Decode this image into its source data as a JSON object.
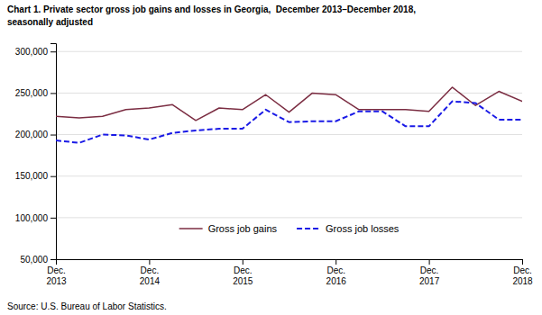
{
  "chart_data": {
    "type": "line",
    "title": "Chart 1. Private sector gross job gains and losses in Georgia,  December 2013–December 2018,\nseasonally adjusted",
    "annotations": [
      "Source: U.S. Bureau of Labor Statistics."
    ],
    "categories": [
      "Dec.\n2013",
      null,
      null,
      null,
      "Dec.\n2014",
      null,
      null,
      null,
      "Dec.\n2015",
      null,
      null,
      null,
      "Dec.\n2016",
      null,
      null,
      null,
      "Dec.\n2017",
      null,
      null,
      null,
      "Dec.\n2018"
    ],
    "series": [
      {
        "name": "Gross job gains",
        "color": "#7B2D42",
        "line_style": "solid",
        "values": [
          222000,
          220000,
          222000,
          230000,
          232000,
          236000,
          217000,
          232000,
          230000,
          248000,
          227000,
          250000,
          248000,
          230000,
          230000,
          230000,
          228000,
          257000,
          235000,
          252000,
          240000
        ]
      },
      {
        "name": "Gross job losses",
        "color": "#1A1AE6",
        "line_style": "dashed",
        "values": [
          193000,
          190000,
          200000,
          199000,
          194000,
          202000,
          205000,
          207000,
          207000,
          230000,
          215000,
          216000,
          216000,
          228000,
          228000,
          210000,
          210000,
          240000,
          238000,
          218000,
          218000
        ]
      }
    ],
    "ylim": [
      50000,
      310000
    ],
    "yticks": [
      {
        "value": 50000,
        "label": "50,000"
      },
      {
        "value": 100000,
        "label": "100,000"
      },
      {
        "value": 150000,
        "label": "150,000"
      },
      {
        "value": 200000,
        "label": "200,000"
      },
      {
        "value": 250000,
        "label": "250,000"
      },
      {
        "value": 300000,
        "label": "300,000"
      }
    ],
    "grid": true,
    "legend": "bottom"
  }
}
